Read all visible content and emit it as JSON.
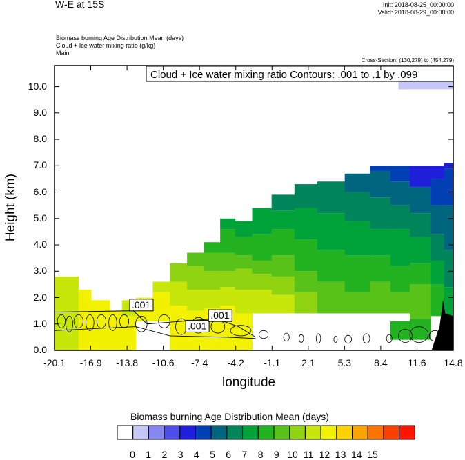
{
  "header": {
    "title": "W-E at 15S",
    "init": "Init: 2018-08-25_00:00:00",
    "valid": "Valid: 2018-08-29_00:00:00",
    "field1": "Biomass burning Age Distribution Mean    (days)",
    "field2": "Cloud + Ice water mixing ratio    (g/kg)",
    "field3": "Main",
    "cross_section": "Cross-Section: (130,279) to (454,279)"
  },
  "chart_data": {
    "type": "heatmap",
    "xlabel": "longitude",
    "ylabel": "Height (km)",
    "x_ticks": [
      "-20.1",
      "-16.9",
      "-13.8",
      "-10.6",
      "-7.4",
      "-4.2",
      "-1.1",
      "2.1",
      "5.3",
      "8.4",
      "11.6",
      "14.8"
    ],
    "y_ticks": [
      "0.0",
      "1.0",
      "2.0",
      "3.0",
      "4.0",
      "5.0",
      "6.0",
      "7.0",
      "8.0",
      "9.0",
      "10.0"
    ],
    "xlim": [
      -20.1,
      14.8
    ],
    "ylim": [
      0,
      10.8
    ],
    "contour_title": "Cloud + Ice water mixing ratio Contours: .001 to .1 by .099",
    "contour_labels": [
      {
        "text": ".001",
        "x": -13.4,
        "y": 1.6
      },
      {
        "text": ".001",
        "x": -8.5,
        "y": 0.8
      },
      {
        "text": ".001",
        "x": -6.5,
        "y": 1.2
      }
    ],
    "colorbar": {
      "title": "Biomass burning Age Distribution Mean  (days)",
      "labels": [
        "0",
        "1",
        "2",
        "3",
        "4",
        "5",
        "6",
        "7",
        "8",
        "9",
        "10",
        "11",
        "12",
        "13",
        "14",
        "15"
      ],
      "colors": [
        "#ffffff",
        "#c6c6f7",
        "#8787f0",
        "#4d4de9",
        "#1f1fdb",
        "#003fb4",
        "#00657f",
        "#00855a",
        "#00a23a",
        "#23b220",
        "#59c219",
        "#8fd311",
        "#c7e70a",
        "#f2f200",
        "#fbd200",
        "#fba400",
        "#fb7400",
        "#fa4000",
        "#ff1400"
      ]
    },
    "age_columns": [
      {
        "x0": -20.1,
        "x1": -18.0,
        "bands": [
          [
            0.0,
            2.8,
            12
          ]
        ]
      },
      {
        "x0": -18.0,
        "x1": -16.9,
        "bands": [
          [
            0.0,
            2.3,
            13
          ]
        ]
      },
      {
        "x0": -16.9,
        "x1": -15.3,
        "bands": [
          [
            0.0,
            1.9,
            13
          ]
        ]
      },
      {
        "x0": -15.3,
        "x1": -14.2,
        "bands": [
          [
            0.0,
            1.5,
            13
          ]
        ]
      },
      {
        "x0": -14.2,
        "x1": -13.0,
        "bands": [
          [
            0.0,
            1.3,
            13
          ],
          [
            1.3,
            1.9,
            12
          ]
        ]
      },
      {
        "x0": -13.0,
        "x1": -11.5,
        "bands": [
          [
            1.1,
            2.0,
            13
          ]
        ]
      },
      {
        "x0": -11.5,
        "x1": -10.0,
        "bands": [
          [
            1.1,
            2.2,
            13
          ],
          [
            2.2,
            2.6,
            12
          ]
        ]
      },
      {
        "x0": -10.0,
        "x1": -8.5,
        "bands": [
          [
            0.0,
            1.7,
            13
          ],
          [
            1.7,
            2.6,
            12
          ],
          [
            2.6,
            3.3,
            11
          ]
        ]
      },
      {
        "x0": -8.5,
        "x1": -7.0,
        "bands": [
          [
            0.0,
            1.5,
            13
          ],
          [
            1.5,
            2.3,
            12
          ],
          [
            2.3,
            3.2,
            11
          ],
          [
            3.2,
            3.7,
            10
          ]
        ]
      },
      {
        "x0": -7.0,
        "x1": -5.6,
        "bands": [
          [
            0.0,
            1.6,
            13
          ],
          [
            1.6,
            2.3,
            12
          ],
          [
            2.3,
            3.0,
            11
          ],
          [
            3.0,
            3.7,
            10
          ],
          [
            3.7,
            4.1,
            9
          ]
        ]
      },
      {
        "x0": -5.6,
        "x1": -4.3,
        "bands": [
          [
            0.0,
            1.7,
            13
          ],
          [
            1.7,
            2.4,
            12
          ],
          [
            2.4,
            3.0,
            11
          ],
          [
            3.0,
            3.7,
            10
          ],
          [
            3.7,
            4.6,
            9
          ],
          [
            4.6,
            5.0,
            8
          ]
        ]
      },
      {
        "x0": -4.3,
        "x1": -2.8,
        "bands": [
          [
            0.0,
            1.4,
            13
          ],
          [
            1.4,
            2.3,
            12
          ],
          [
            2.3,
            3.1,
            11
          ],
          [
            3.1,
            3.6,
            10
          ],
          [
            3.6,
            4.3,
            9
          ],
          [
            4.3,
            4.9,
            8
          ]
        ]
      },
      {
        "x0": -2.8,
        "x1": -1.1,
        "bands": [
          [
            1.4,
            2.3,
            12
          ],
          [
            2.3,
            2.9,
            11
          ],
          [
            2.9,
            3.4,
            10
          ],
          [
            3.4,
            4.4,
            9
          ],
          [
            4.4,
            5.4,
            8
          ]
        ]
      },
      {
        "x0": -1.1,
        "x1": 0.9,
        "bands": [
          [
            1.4,
            2.1,
            12
          ],
          [
            2.1,
            2.8,
            11
          ],
          [
            2.8,
            3.6,
            10
          ],
          [
            3.6,
            4.6,
            9
          ],
          [
            4.6,
            5.3,
            8
          ],
          [
            5.3,
            5.9,
            7
          ]
        ]
      },
      {
        "x0": 0.9,
        "x1": 2.9,
        "bands": [
          [
            1.4,
            2.2,
            11
          ],
          [
            2.2,
            3.0,
            10
          ],
          [
            3.0,
            4.2,
            9
          ],
          [
            4.2,
            5.4,
            8
          ],
          [
            5.4,
            6.3,
            7
          ]
        ]
      },
      {
        "x0": 2.9,
        "x1": 5.3,
        "bands": [
          [
            1.4,
            2.6,
            10
          ],
          [
            2.6,
            3.8,
            9
          ],
          [
            3.8,
            5.2,
            8
          ],
          [
            5.2,
            6.4,
            7
          ]
        ]
      },
      {
        "x0": 5.3,
        "x1": 7.5,
        "bands": [
          [
            1.4,
            2.2,
            10
          ],
          [
            2.2,
            3.6,
            9
          ],
          [
            3.6,
            4.9,
            8
          ],
          [
            4.9,
            6.0,
            7
          ],
          [
            6.0,
            6.7,
            6
          ]
        ]
      },
      {
        "x0": 7.5,
        "x1": 9.3,
        "bands": [
          [
            1.4,
            2.6,
            10
          ],
          [
            2.6,
            3.6,
            9
          ],
          [
            3.6,
            4.6,
            8
          ],
          [
            4.6,
            5.8,
            7
          ],
          [
            5.8,
            6.8,
            6
          ],
          [
            6.8,
            7.0,
            5
          ]
        ]
      },
      {
        "x0": 9.3,
        "x1": 11.0,
        "bands": [
          [
            0.4,
            1.1,
            9
          ],
          [
            1.4,
            2.2,
            10
          ],
          [
            2.2,
            3.2,
            9
          ],
          [
            3.2,
            4.6,
            8
          ],
          [
            4.6,
            5.5,
            7
          ],
          [
            5.5,
            6.4,
            6
          ],
          [
            6.4,
            7.0,
            5
          ]
        ]
      },
      {
        "x0": 11.0,
        "x1": 12.8,
        "bands": [
          [
            0.4,
            1.2,
            9
          ],
          [
            1.2,
            2.5,
            10
          ],
          [
            2.5,
            3.3,
            9
          ],
          [
            3.3,
            4.3,
            8
          ],
          [
            4.3,
            5.2,
            7
          ],
          [
            5.2,
            6.2,
            6
          ],
          [
            6.2,
            7.0,
            4
          ]
        ]
      },
      {
        "x0": 12.8,
        "x1": 14.0,
        "bands": [
          [
            1.3,
            2.5,
            9
          ],
          [
            2.5,
            3.4,
            8
          ],
          [
            3.4,
            4.4,
            7
          ],
          [
            4.4,
            5.5,
            6
          ],
          [
            5.5,
            6.5,
            5
          ],
          [
            6.5,
            7.0,
            4
          ]
        ]
      },
      {
        "x0": 14.0,
        "x1": 14.8,
        "bands": [
          [
            1.3,
            2.4,
            8
          ],
          [
            2.4,
            3.8,
            7
          ],
          [
            3.8,
            5.5,
            6
          ],
          [
            5.5,
            6.9,
            5
          ],
          [
            6.9,
            7.1,
            4
          ]
        ]
      },
      {
        "x0": 10.0,
        "x1": 14.8,
        "bands": [
          [
            9.9,
            10.3,
            1
          ]
        ]
      }
    ]
  }
}
